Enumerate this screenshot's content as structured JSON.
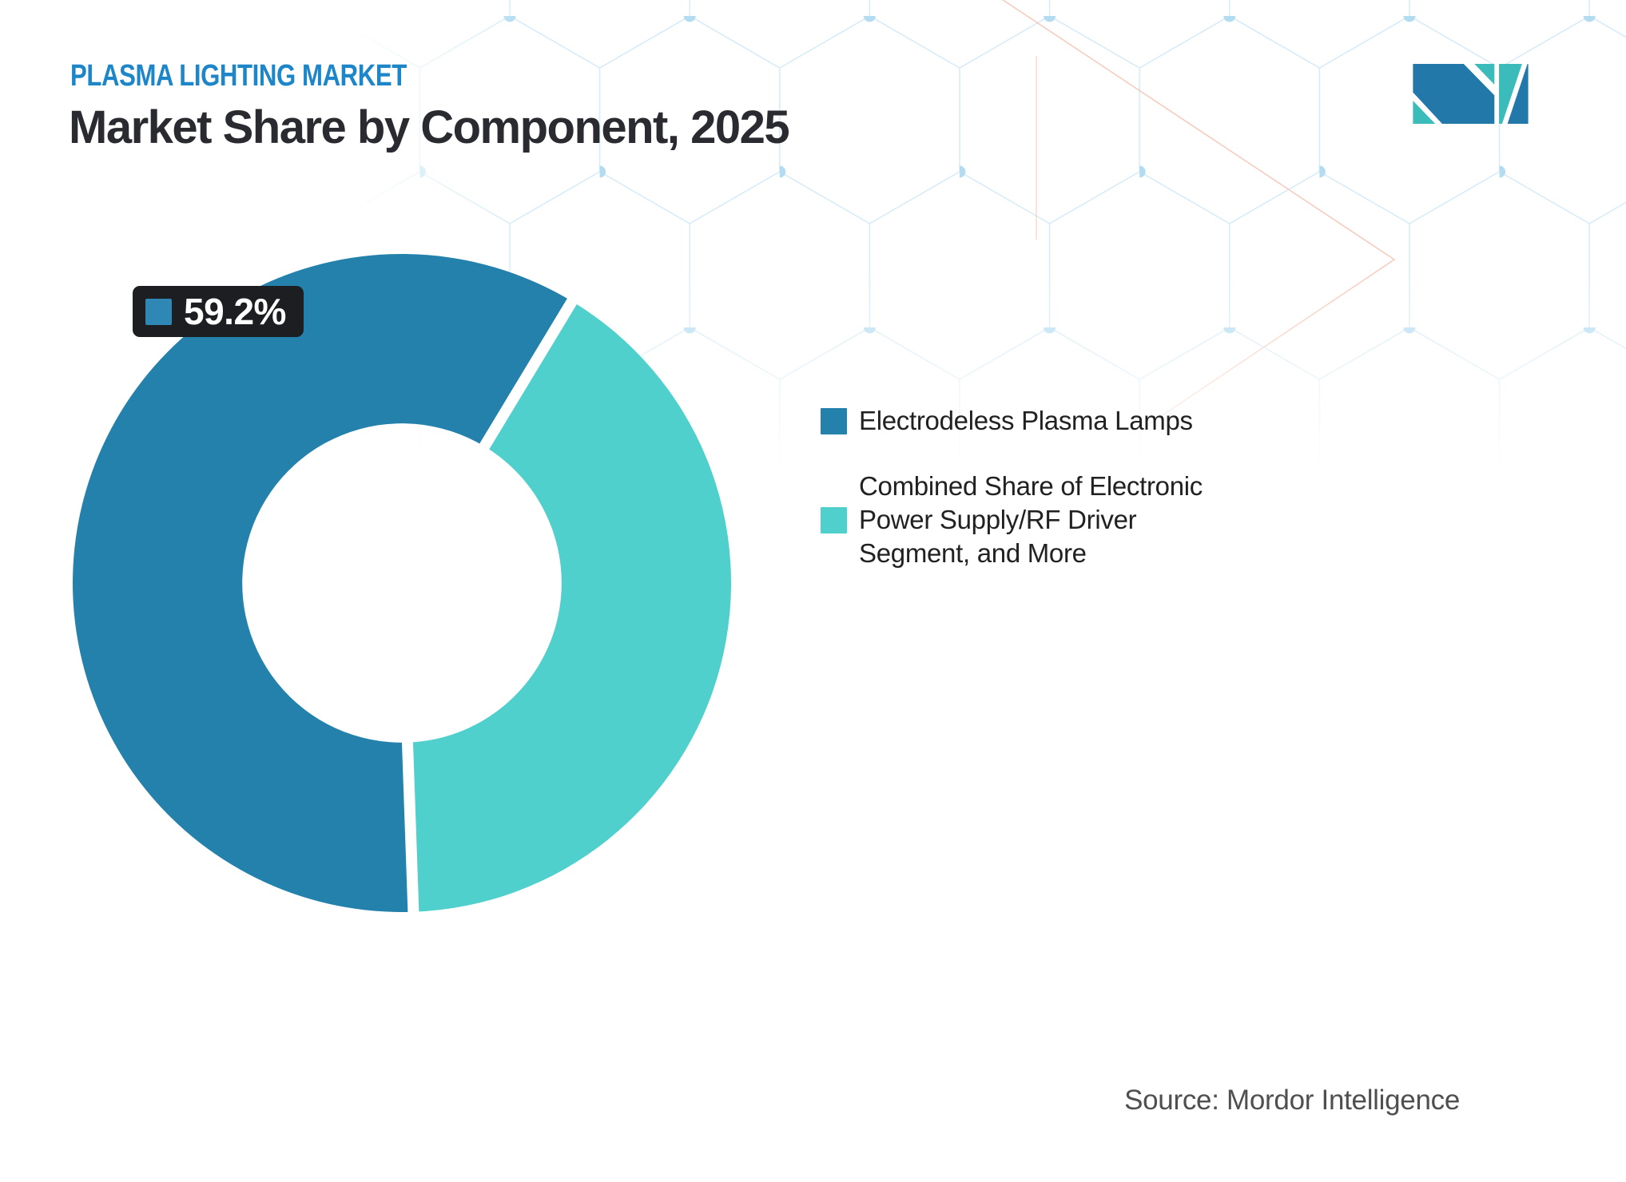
{
  "header": {
    "eyebrow": "PLASMA LIGHTING MARKET",
    "title": "Market Share by Component, 2025"
  },
  "chart_data": {
    "type": "pie",
    "donut": true,
    "title": "Market Share by Component, 2025",
    "units": "%",
    "slices": [
      {
        "label": "Electrodeless Plasma Lamps",
        "value": 59.2,
        "color": "#2381ac"
      },
      {
        "label": "Combined Share of Electronic Power Supply/RF Driver Segment, and More",
        "value": 40.8,
        "color": "#4fd0cc"
      }
    ],
    "callout": {
      "value": "59.2%",
      "slice": "Electrodeless Plasma Lamps"
    },
    "layout": {
      "start_angle_deg": 178,
      "inner_radius_ratio": 0.485,
      "gap_stroke_px": 14,
      "legend_position": "right",
      "data_labels": false
    }
  },
  "callout": {
    "value": "59.2%",
    "swatch_color": "#2e87b4"
  },
  "legend": {
    "items": [
      {
        "label": "Electrodeless Plasma Lamps",
        "color": "#2381ac"
      },
      {
        "label": "Combined Share of Electronic\nPower Supply/RF Driver\nSegment, and More",
        "color": "#4fd0cc"
      }
    ]
  },
  "footer": {
    "source": "Source: Mordor Intelligence"
  },
  "brand": {
    "logo_colors": {
      "blue": "#2178a9",
      "teal": "#3bbcba"
    },
    "pattern_colors": {
      "line": "#d8ecf7",
      "dot": "#b4dcf1",
      "accent": "#f3bfae"
    }
  }
}
